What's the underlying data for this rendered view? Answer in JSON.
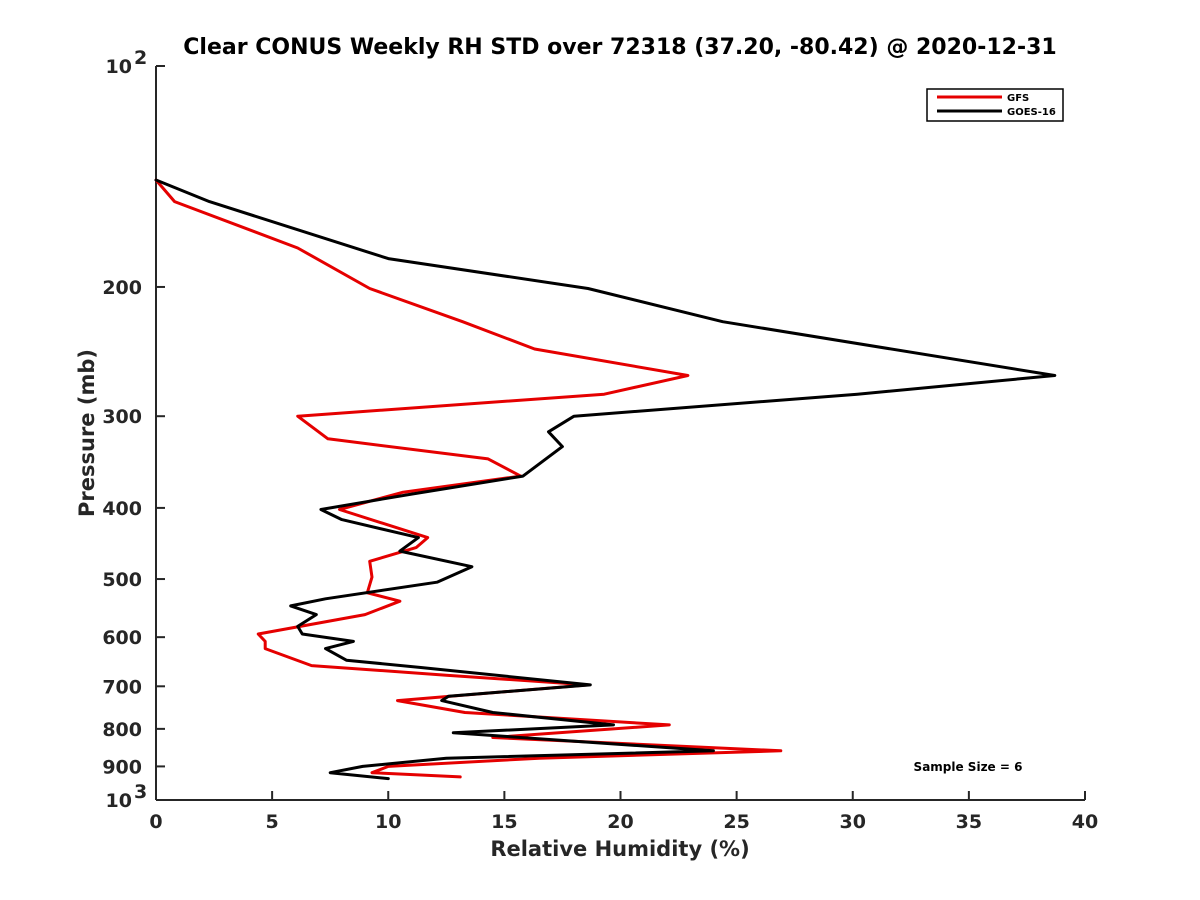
{
  "chart_data": {
    "type": "line",
    "title": "Clear CONUS Weekly RH STD over 72318 (37.20, -80.42) @ 2020-12-31",
    "xlabel": "Relative Humidity (%)",
    "ylabel": "Pressure (mb)",
    "xlim": [
      0,
      40
    ],
    "ylim": [
      100,
      1000
    ],
    "y_scale": "log",
    "y_reversed": true,
    "x_ticks": [
      0,
      5,
      10,
      15,
      20,
      25,
      30,
      35,
      40
    ],
    "y_ticks": [
      {
        "value": 100,
        "base": "10",
        "exp": "2"
      },
      {
        "value": 200,
        "label": "200"
      },
      {
        "value": 300,
        "label": "300"
      },
      {
        "value": 400,
        "label": "400"
      },
      {
        "value": 500,
        "label": "500"
      },
      {
        "value": 600,
        "label": "600"
      },
      {
        "value": 700,
        "label": "700"
      },
      {
        "value": 800,
        "label": "800"
      },
      {
        "value": 900,
        "label": "900"
      },
      {
        "value": 1000,
        "base": "10",
        "exp": "3"
      }
    ],
    "grid": false,
    "legend_position": "top-right",
    "annotation": "Sample Size = 6",
    "series": [
      {
        "name": "GFS",
        "color": "#e50000",
        "x": [
          0.0,
          0.8,
          6.1,
          9.2,
          13.2,
          16.3,
          22.9,
          19.3,
          6.1,
          7.4,
          14.3,
          15.7,
          10.6,
          7.9,
          11.7,
          11.2,
          9.2,
          9.3,
          9.1,
          10.5,
          9.0,
          4.4,
          4.7,
          4.7,
          6.7,
          12.5,
          18.6,
          10.4,
          13.3,
          22.1,
          14.5,
          26.9,
          16.5,
          10.0,
          9.3,
          13.1
        ],
        "y": [
          143,
          153,
          177,
          201,
          223,
          243,
          264,
          280,
          300,
          322,
          343,
          362,
          381,
          402,
          439,
          453,
          473,
          497,
          522,
          536,
          559,
          594,
          608,
          622,
          656,
          676,
          697,
          732,
          760,
          790,
          822,
          857,
          877,
          900,
          918,
          930
        ]
      },
      {
        "name": "GOES-16",
        "color": "#000000",
        "x": [
          0.0,
          2.3,
          10.0,
          18.6,
          24.4,
          38.7,
          30.2,
          18.0,
          16.9,
          17.5,
          15.8,
          11.0,
          7.1,
          8.0,
          11.3,
          10.5,
          13.6,
          12.1,
          7.3,
          5.8,
          6.9,
          6.1,
          6.3,
          8.5,
          7.3,
          8.2,
          11.4,
          18.7,
          12.6,
          12.3,
          14.5,
          19.7,
          12.8,
          24.0,
          12.5,
          8.9,
          7.5,
          10.0
        ],
        "y": [
          143,
          153,
          183,
          201,
          223,
          264,
          280,
          300,
          315,
          330,
          362,
          383,
          402,
          415,
          439,
          458,
          481,
          505,
          532,
          544,
          559,
          580,
          594,
          608,
          622,
          645,
          660,
          697,
          722,
          732,
          760,
          790,
          810,
          857,
          877,
          900,
          918,
          935
        ]
      }
    ]
  }
}
